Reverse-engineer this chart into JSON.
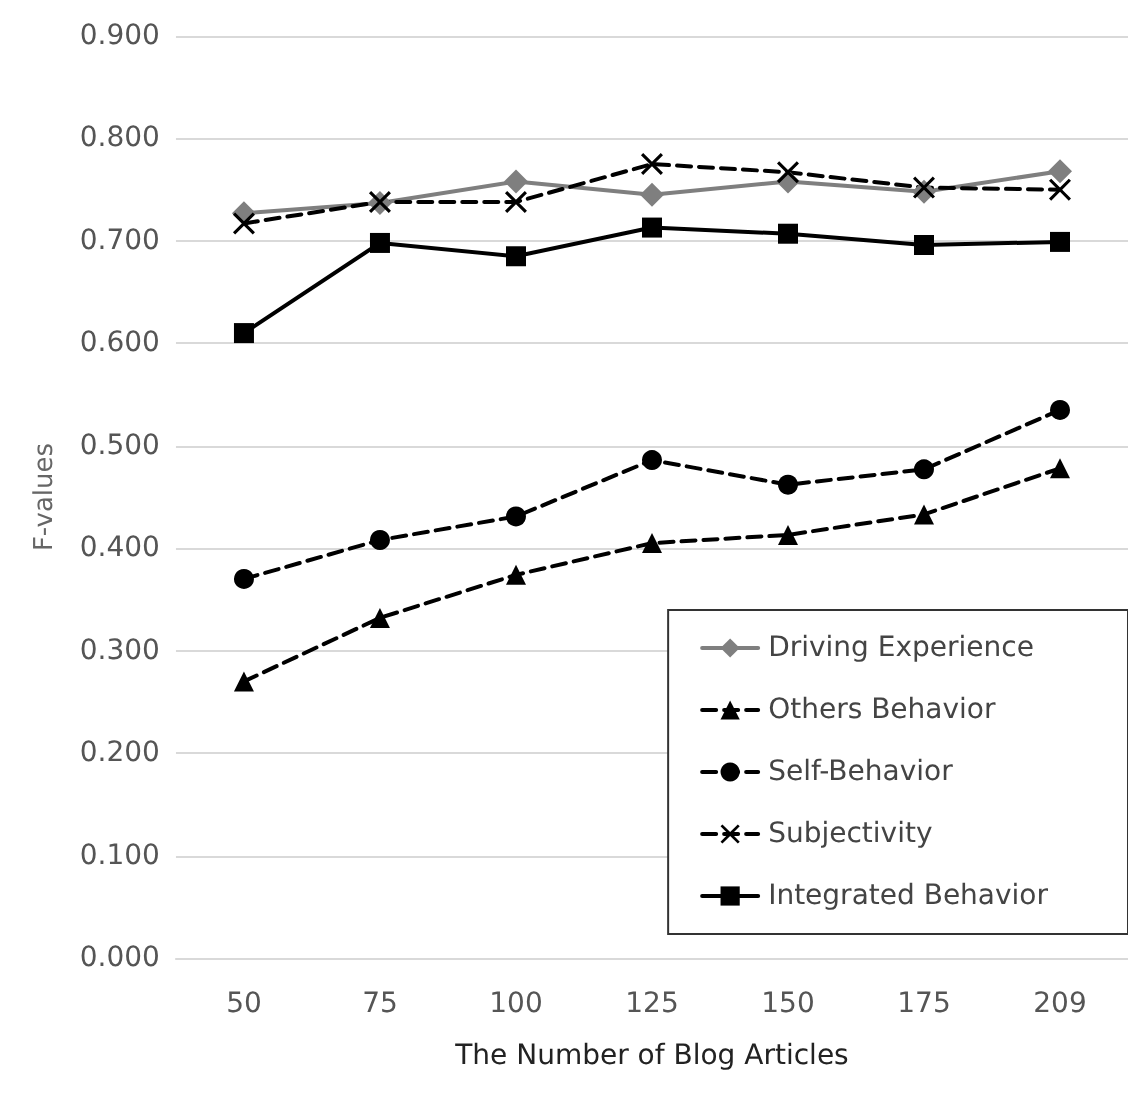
{
  "chart_data": {
    "type": "line",
    "xlabel": "The Number of Blog Articles",
    "ylabel": "F-values",
    "categories": [
      "50",
      "75",
      "100",
      "125",
      "150",
      "175",
      "209"
    ],
    "ylim": [
      0,
      0.9
    ],
    "yticks": [
      {
        "value": 0,
        "label": "0.000"
      },
      {
        "value": 0.1,
        "label": "0.100"
      },
      {
        "value": 0.2,
        "label": "0.200"
      },
      {
        "value": 0.3,
        "label": "0.300"
      },
      {
        "value": 0.4,
        "label": "0.400"
      },
      {
        "value": 0.5,
        "label": "0.500"
      },
      {
        "value": 0.6,
        "label": "0.600"
      },
      {
        "value": 0.7,
        "label": "0.700"
      },
      {
        "value": 0.8,
        "label": "0.800"
      },
      {
        "value": 0.9,
        "label": "0.900"
      }
    ],
    "grid": "y",
    "legend": "bottom right",
    "series": [
      {
        "name": "Driving Experience",
        "color": "#7f7f7f",
        "marker": "diamond",
        "line_style": "solid",
        "values": [
          0.727,
          0.737,
          0.758,
          0.745,
          0.758,
          0.748,
          0.768
        ]
      },
      {
        "name": "Others Behavior",
        "color": "#000000",
        "marker": "triangle",
        "line_style": "dashed",
        "values": [
          0.27,
          0.332,
          0.374,
          0.405,
          0.413,
          0.433,
          0.478
        ]
      },
      {
        "name": "Self-Behavior",
        "color": "#000000",
        "marker": "circle",
        "line_style": "dashed",
        "values": [
          0.37,
          0.408,
          0.431,
          0.486,
          0.462,
          0.477,
          0.535
        ]
      },
      {
        "name": "Subjectivity",
        "color": "#000000",
        "marker": "cross",
        "line_style": "dashed",
        "values": [
          0.717,
          0.738,
          0.738,
          0.775,
          0.767,
          0.752,
          0.75
        ]
      },
      {
        "name": "Integrated Behavior",
        "color": "#000000",
        "marker": "square",
        "line_style": "solid",
        "values": [
          0.61,
          0.698,
          0.685,
          0.713,
          0.707,
          0.696,
          0.699
        ]
      }
    ]
  }
}
